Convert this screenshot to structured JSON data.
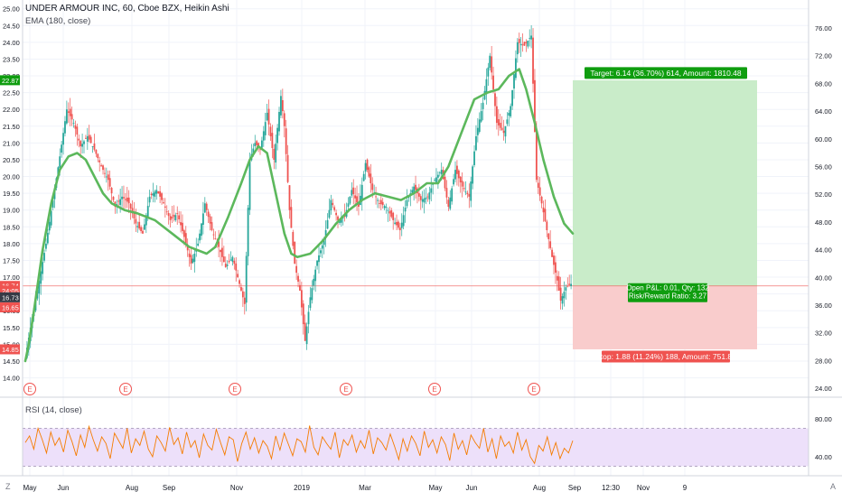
{
  "title": "UNDER ARMOUR INC, 60, Cboe BZX, Heikin Ashi",
  "indicator_main": "EMA (180, close)",
  "indicator_rsi": "RSI (14, close)",
  "colors": {
    "up": "#26a69a",
    "down": "#ef5350",
    "ema": "#5cb85c",
    "rsi": "#f57c00",
    "target_fill": "#c9ecc9",
    "stop_fill": "#f9cccc",
    "green_tag": "#0f9d0f",
    "red_tag": "#f70d1a",
    "rsi_band": "#ede0fa",
    "grid": "#f0f3fa"
  },
  "chart_data": [
    {
      "type": "candlestick",
      "title": "UNDER ARMOUR INC, 60, Cboe BZX, Heikin Ashi",
      "x_ticks": [
        "May",
        "Jun",
        "Aug",
        "Sep",
        "Nov",
        "2019",
        "Mar",
        "May",
        "Jun",
        "Aug",
        "Sep",
        "12:30",
        "Nov",
        "9"
      ],
      "left_axis": {
        "ticks": [
          "25.00",
          "24.50",
          "24.00",
          "23.50",
          "23.00",
          "22.50",
          "22.00",
          "21.50",
          "21.00",
          "20.50",
          "20.00",
          "19.50",
          "19.00",
          "18.50",
          "18.00",
          "17.50",
          "17.00",
          "16.50",
          "16.00",
          "15.50",
          "15.00",
          "14.50",
          "14.00"
        ],
        "range": [
          13.8,
          25.1
        ]
      },
      "right_axis": {
        "ticks": [
          "76.00",
          "72.00",
          "68.00",
          "64.00",
          "60.00",
          "56.00",
          "52.00",
          "48.00",
          "44.00",
          "40.00",
          "36.00",
          "32.00",
          "28.00",
          "24.00"
        ]
      },
      "price_tags": [
        {
          "label": "22.87",
          "value": 22.87,
          "color": "green"
        },
        {
          "label": "16.74",
          "value": 16.74,
          "color": "red"
        },
        {
          "label": "24:05",
          "value": 16.6,
          "color": "red"
        },
        {
          "label": "16.73",
          "value": 16.4,
          "color": "dark"
        },
        {
          "label": "16.65",
          "value": 16.1,
          "color": "red"
        },
        {
          "label": "14.85",
          "value": 14.85,
          "color": "red"
        }
      ],
      "ema_period": 180,
      "ema": [
        [
          0,
          14.5
        ],
        [
          4,
          15.0
        ],
        [
          10,
          16.0
        ],
        [
          20,
          17.8
        ],
        [
          30,
          19.2
        ],
        [
          40,
          20.2
        ],
        [
          50,
          20.6
        ],
        [
          60,
          20.7
        ],
        [
          70,
          20.5
        ],
        [
          80,
          20.0
        ],
        [
          90,
          19.5
        ],
        [
          100,
          19.2
        ],
        [
          115,
          19.0
        ],
        [
          130,
          18.9
        ],
        [
          150,
          18.7
        ],
        [
          170,
          18.3
        ],
        [
          190,
          17.9
        ],
        [
          210,
          17.7
        ],
        [
          220,
          17.9
        ],
        [
          235,
          18.8
        ],
        [
          250,
          19.8
        ],
        [
          260,
          20.5
        ],
        [
          270,
          20.9
        ],
        [
          280,
          20.7
        ],
        [
          290,
          19.5
        ],
        [
          300,
          18.3
        ],
        [
          308,
          17.7
        ],
        [
          315,
          17.6
        ],
        [
          330,
          17.7
        ],
        [
          345,
          18.1
        ],
        [
          360,
          18.6
        ],
        [
          375,
          19.0
        ],
        [
          390,
          19.3
        ],
        [
          405,
          19.5
        ],
        [
          420,
          19.4
        ],
        [
          435,
          19.3
        ],
        [
          450,
          19.5
        ],
        [
          465,
          19.8
        ],
        [
          478,
          19.8
        ],
        [
          490,
          20.3
        ],
        [
          505,
          21.3
        ],
        [
          520,
          22.3
        ],
        [
          535,
          22.5
        ],
        [
          548,
          22.6
        ],
        [
          560,
          23.0
        ],
        [
          572,
          23.2
        ],
        [
          580,
          22.6
        ],
        [
          590,
          21.6
        ],
        [
          600,
          20.5
        ],
        [
          612,
          19.4
        ],
        [
          624,
          18.6
        ],
        [
          634,
          18.3
        ]
      ],
      "heikin_ashi_close": [
        [
          0,
          14.6
        ],
        [
          8,
          15.8
        ],
        [
          16,
          16.9
        ],
        [
          24,
          18.0
        ],
        [
          32,
          19.3
        ],
        [
          40,
          20.6
        ],
        [
          48,
          22.0
        ],
        [
          56,
          21.6
        ],
        [
          64,
          20.9
        ],
        [
          72,
          21.2
        ],
        [
          80,
          20.8
        ],
        [
          88,
          20.3
        ],
        [
          96,
          19.9
        ],
        [
          104,
          19.1
        ],
        [
          112,
          19.4
        ],
        [
          120,
          19.2
        ],
        [
          128,
          18.6
        ],
        [
          136,
          18.3
        ],
        [
          144,
          19.4
        ],
        [
          152,
          19.6
        ],
        [
          160,
          19.2
        ],
        [
          168,
          18.7
        ],
        [
          176,
          18.9
        ],
        [
          184,
          18.2
        ],
        [
          192,
          17.4
        ],
        [
          200,
          18.0
        ],
        [
          208,
          19.2
        ],
        [
          216,
          18.4
        ],
        [
          224,
          17.9
        ],
        [
          232,
          17.3
        ],
        [
          240,
          17.6
        ],
        [
          248,
          16.8
        ],
        [
          254,
          16.2
        ],
        [
          260,
          20.5
        ],
        [
          266,
          21.0
        ],
        [
          272,
          20.8
        ],
        [
          280,
          21.9
        ],
        [
          288,
          20.5
        ],
        [
          296,
          22.4
        ],
        [
          300,
          21.5
        ],
        [
          306,
          19.0
        ],
        [
          312,
          17.4
        ],
        [
          318,
          16.6
        ],
        [
          324,
          15.1
        ],
        [
          330,
          16.4
        ],
        [
          338,
          17.5
        ],
        [
          346,
          18.1
        ],
        [
          354,
          19.3
        ],
        [
          362,
          18.7
        ],
        [
          370,
          18.8
        ],
        [
          378,
          19.6
        ],
        [
          386,
          19.1
        ],
        [
          394,
          20.4
        ],
        [
          402,
          19.6
        ],
        [
          410,
          19.2
        ],
        [
          418,
          19.1
        ],
        [
          426,
          18.7
        ],
        [
          434,
          18.4
        ],
        [
          442,
          19.3
        ],
        [
          450,
          19.7
        ],
        [
          458,
          19.3
        ],
        [
          466,
          19.4
        ],
        [
          474,
          19.9
        ],
        [
          482,
          20.2
        ],
        [
          490,
          19.1
        ],
        [
          498,
          20.2
        ],
        [
          506,
          19.7
        ],
        [
          514,
          19.4
        ],
        [
          522,
          21.2
        ],
        [
          530,
          22.2
        ],
        [
          538,
          23.6
        ],
        [
          546,
          21.6
        ],
        [
          554,
          21.3
        ],
        [
          562,
          22.1
        ],
        [
          570,
          24.0
        ],
        [
          578,
          23.9
        ],
        [
          586,
          24.2
        ],
        [
          592,
          19.9
        ],
        [
          598,
          19.2
        ],
        [
          604,
          18.4
        ],
        [
          610,
          17.6
        ],
        [
          616,
          16.9
        ],
        [
          620,
          16.3
        ],
        [
          626,
          16.7
        ],
        [
          632,
          16.8
        ]
      ],
      "trade": {
        "position": "long",
        "entry": 16.74,
        "target_price": 22.87,
        "stop_price": 14.85,
        "target_label": "Target: 6.14 (36.70%) 614, Amount: 1810.48",
        "stop_label": "Stop: 1.88 (11.24%) 188, Amount: 751.84",
        "center_label_1": "Open P&L: 0.01, Qty: 132",
        "center_label_2": "Risk/Reward Ratio: 3.27"
      },
      "earnings_markers": [
        "E",
        "E",
        "E",
        "E",
        "E",
        "E"
      ]
    },
    {
      "type": "line",
      "title": "RSI (14, close)",
      "ylim": [
        20,
        100
      ],
      "band": [
        30,
        70
      ],
      "right_axis_ticks": [
        "80.00",
        "40.00"
      ],
      "series": [
        {
          "values": [
            55,
            62,
            48,
            70,
            58,
            44,
            66,
            52,
            60,
            45,
            68,
            56,
            41,
            63,
            50,
            72,
            58,
            46,
            61,
            54,
            38,
            65,
            57,
            49,
            70,
            44,
            59,
            52,
            67,
            48,
            40,
            62,
            55,
            46,
            71,
            53,
            60,
            43,
            66,
            50,
            57,
            39,
            64,
            52,
            47,
            69,
            55,
            42,
            61,
            58,
            35,
            54,
            66,
            48,
            60,
            44,
            57,
            51,
            38,
            62,
            47,
            65,
            53,
            41,
            59,
            56,
            45,
            73,
            50,
            42,
            61,
            54,
            48,
            66,
            39,
            58,
            52,
            63,
            45,
            57,
            49,
            68,
            43,
            60,
            55,
            47,
            64,
            51,
            37,
            59,
            46,
            62,
            54,
            41,
            67,
            50,
            58,
            44,
            61,
            53,
            36,
            65,
            48,
            57,
            42,
            63,
            55,
            49,
            70,
            45,
            59,
            38,
            62,
            51,
            56,
            44,
            66,
            47,
            58,
            40,
            33,
            52,
            46,
            61,
            42,
            55,
            38,
            49,
            44,
            57
          ]
        }
      ]
    }
  ]
}
